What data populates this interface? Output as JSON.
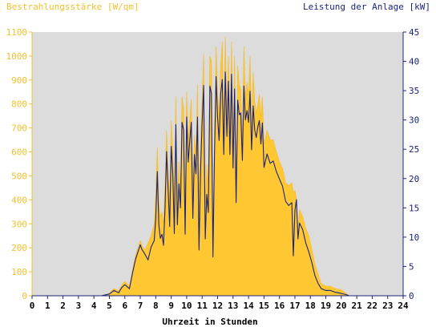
{
  "chart_data": {
    "type": "area",
    "title": "",
    "ylabel_left": "Bestrahlungsstärke [W/qm]",
    "ylabel_right": "Leistung der Anlage [kW]",
    "xlabel": "Uhrzeit in Stunden",
    "xlim": [
      0,
      24
    ],
    "ylim_left": [
      0,
      1100
    ],
    "ylim_right": [
      0,
      45
    ],
    "x_ticks": [
      "0",
      "1",
      "2",
      "3",
      "4",
      "5",
      "6",
      "7",
      "8",
      "9",
      "10",
      "11",
      "12",
      "13",
      "14",
      "15",
      "16",
      "17",
      "18",
      "19",
      "20",
      "21",
      "22",
      "23",
      "24"
    ],
    "y_left_ticks": [
      "0",
      "100",
      "200",
      "300",
      "400",
      "500",
      "600",
      "700",
      "800",
      "900",
      "1000",
      "1100"
    ],
    "y_right_ticks": [
      "0",
      "5",
      "10",
      "15",
      "20",
      "25",
      "30",
      "35",
      "40",
      "45"
    ],
    "grid": false,
    "colors": {
      "plot_background": "#dcdcdc",
      "irradiance": "#ffc832",
      "power": "#1a237e",
      "left_axis": "#f2c12e",
      "right_axis": "#1a237e"
    },
    "series": [
      {
        "axis": "left",
        "style": "area",
        "x": [
          0,
          4.5,
          5.0,
          5.3,
          5.6,
          5.8,
          6.0,
          6.3,
          6.5,
          6.7,
          7.0,
          7.1,
          7.3,
          7.5,
          7.7,
          7.9,
          8.0,
          8.1,
          8.2,
          8.3,
          8.4,
          8.5,
          8.6,
          8.7,
          8.8,
          8.9,
          9.0,
          9.1,
          9.2,
          9.3,
          9.4,
          9.5,
          9.6,
          9.7,
          9.8,
          9.9,
          10.0,
          10.1,
          10.2,
          10.3,
          10.4,
          10.5,
          10.6,
          10.7,
          10.8,
          10.9,
          11.0,
          11.1,
          11.2,
          11.3,
          11.4,
          11.5,
          11.6,
          11.7,
          11.8,
          11.9,
          12.0,
          12.1,
          12.2,
          12.3,
          12.4,
          12.5,
          12.6,
          12.7,
          12.8,
          12.9,
          13.0,
          13.1,
          13.2,
          13.3,
          13.4,
          13.5,
          13.6,
          13.7,
          13.8,
          13.9,
          14.0,
          14.1,
          14.2,
          14.3,
          14.4,
          14.5,
          14.6,
          14.7,
          14.8,
          14.9,
          15.0,
          15.2,
          15.4,
          15.6,
          15.8,
          16.0,
          16.2,
          16.4,
          16.6,
          16.8,
          16.9,
          17.0,
          17.1,
          17.2,
          17.3,
          17.5,
          17.7,
          17.9,
          18.1,
          18.3,
          18.5,
          18.7,
          19.0,
          19.3,
          19.6,
          20.0,
          20.3,
          20.5,
          24
        ],
        "y": [
          0,
          0,
          10,
          30,
          20,
          45,
          60,
          40,
          110,
          170,
          230,
          210,
          190,
          220,
          250,
          300,
          420,
          620,
          380,
          330,
          350,
          300,
          460,
          690,
          520,
          380,
          730,
          600,
          350,
          830,
          400,
          560,
          450,
          830,
          780,
          350,
          850,
          650,
          740,
          820,
          430,
          670,
          590,
          880,
          420,
          650,
          820,
          1010,
          360,
          550,
          460,
          1000,
          980,
          250,
          660,
          1040,
          840,
          750,
          960,
          1060,
          690,
          1080,
          760,
          1000,
          690,
          1060,
          630,
          1000,
          430,
          960,
          880,
          860,
          650,
          1040,
          830,
          890,
          830,
          1000,
          700,
          930,
          810,
          760,
          800,
          840,
          740,
          830,
          630,
          690,
          650,
          650,
          600,
          560,
          530,
          470,
          460,
          470,
          430,
          440,
          400,
          280,
          360,
          330,
          280,
          250,
          190,
          130,
          90,
          50,
          40,
          40,
          30,
          25,
          10,
          0,
          0
        ]
      },
      {
        "axis": "right",
        "style": "line",
        "x": [
          0,
          4.5,
          5.0,
          5.3,
          5.6,
          5.8,
          6.0,
          6.3,
          6.5,
          6.7,
          7.0,
          7.1,
          7.3,
          7.5,
          7.7,
          7.9,
          8.0,
          8.1,
          8.2,
          8.3,
          8.4,
          8.5,
          8.6,
          8.7,
          8.8,
          8.9,
          9.0,
          9.1,
          9.2,
          9.3,
          9.4,
          9.5,
          9.6,
          9.7,
          9.8,
          9.9,
          10.0,
          10.1,
          10.2,
          10.3,
          10.4,
          10.5,
          10.6,
          10.7,
          10.8,
          10.9,
          11.0,
          11.1,
          11.2,
          11.3,
          11.4,
          11.5,
          11.6,
          11.7,
          11.8,
          11.9,
          12.0,
          12.1,
          12.2,
          12.3,
          12.4,
          12.5,
          12.6,
          12.7,
          12.8,
          12.9,
          13.0,
          13.1,
          13.2,
          13.3,
          13.4,
          13.5,
          13.6,
          13.7,
          13.8,
          13.9,
          14.0,
          14.1,
          14.2,
          14.3,
          14.4,
          14.5,
          14.6,
          14.7,
          14.8,
          14.9,
          15.0,
          15.2,
          15.4,
          15.6,
          15.8,
          16.0,
          16.2,
          16.4,
          16.6,
          16.8,
          16.9,
          17.0,
          17.1,
          17.2,
          17.3,
          17.5,
          17.7,
          17.9,
          18.1,
          18.3,
          18.5,
          18.7,
          19.0,
          19.3,
          19.6,
          20.0,
          20.3,
          20.5,
          24
        ],
        "y": [
          0,
          0,
          0.3,
          0.9,
          0.5,
          1.4,
          1.9,
          1.2,
          3.9,
          6.3,
          8.7,
          7.9,
          7.1,
          6.1,
          8.3,
          9.4,
          13.1,
          21.2,
          12.1,
          9.8,
          10.5,
          8.6,
          14.9,
          24.6,
          18.1,
          11.8,
          25.5,
          20.8,
          10.6,
          29.2,
          12.1,
          19.1,
          15.0,
          29.6,
          28.3,
          10.5,
          30.5,
          22.8,
          26.5,
          29.6,
          13.2,
          24.1,
          20.8,
          30.5,
          7.8,
          21.6,
          29.6,
          35.9,
          9.7,
          17.3,
          14.2,
          35.8,
          34.5,
          6.6,
          23.9,
          37.4,
          30.4,
          26.5,
          34.5,
          36.9,
          24.1,
          38.2,
          27.2,
          36.6,
          24.1,
          37.8,
          21.8,
          35.3,
          15.9,
          33.4,
          30.9,
          31.2,
          23.1,
          35.8,
          30.0,
          31.6,
          29.6,
          34.9,
          24.9,
          32.4,
          28.3,
          27.0,
          28.8,
          29.9,
          25.9,
          29.5,
          21.9,
          24.2,
          22.6,
          23.0,
          21.2,
          19.9,
          18.7,
          16.1,
          15.4,
          15.9,
          6.8,
          14.6,
          16.4,
          9.7,
          12.4,
          11.3,
          9.0,
          7.5,
          5.6,
          3.4,
          2.1,
          1.2,
          0.9,
          0.9,
          0.6,
          0.4,
          0.2,
          0,
          0
        ]
      }
    ]
  }
}
